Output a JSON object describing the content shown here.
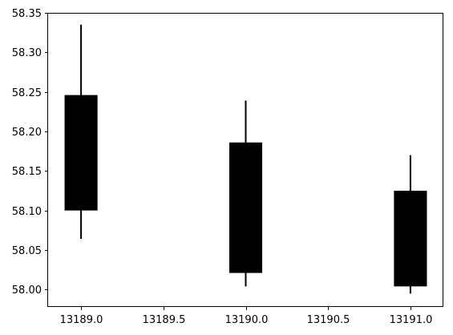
{
  "chart_data": {
    "type": "candlestick",
    "title": "",
    "xlabel": "",
    "ylabel": "",
    "xlim": [
      13188.8,
      13191.2
    ],
    "ylim": [
      57.978,
      58.35
    ],
    "x_ticks": [
      13189.0,
      13189.5,
      13190.0,
      13190.5,
      13191.0
    ],
    "x_tick_labels": [
      "13189.0",
      "13189.5",
      "13190.0",
      "13190.5",
      "13191.0"
    ],
    "y_ticks": [
      58.0,
      58.05,
      58.1,
      58.15,
      58.2,
      58.25,
      58.3,
      58.35
    ],
    "y_tick_labels": [
      "58.00",
      "58.05",
      "58.10",
      "58.15",
      "58.20",
      "58.25",
      "58.30",
      "58.35"
    ],
    "grid": false,
    "candles": [
      {
        "x": 13189.0,
        "open": 58.246,
        "close": 58.1,
        "high": 58.335,
        "low": 58.064
      },
      {
        "x": 13190.0,
        "open": 58.186,
        "close": 58.021,
        "high": 58.239,
        "low": 58.004
      },
      {
        "x": 13191.0,
        "open": 58.125,
        "close": 58.004,
        "high": 58.17,
        "low": 57.995
      }
    ],
    "candle_width": 0.2,
    "color": "#000000"
  }
}
